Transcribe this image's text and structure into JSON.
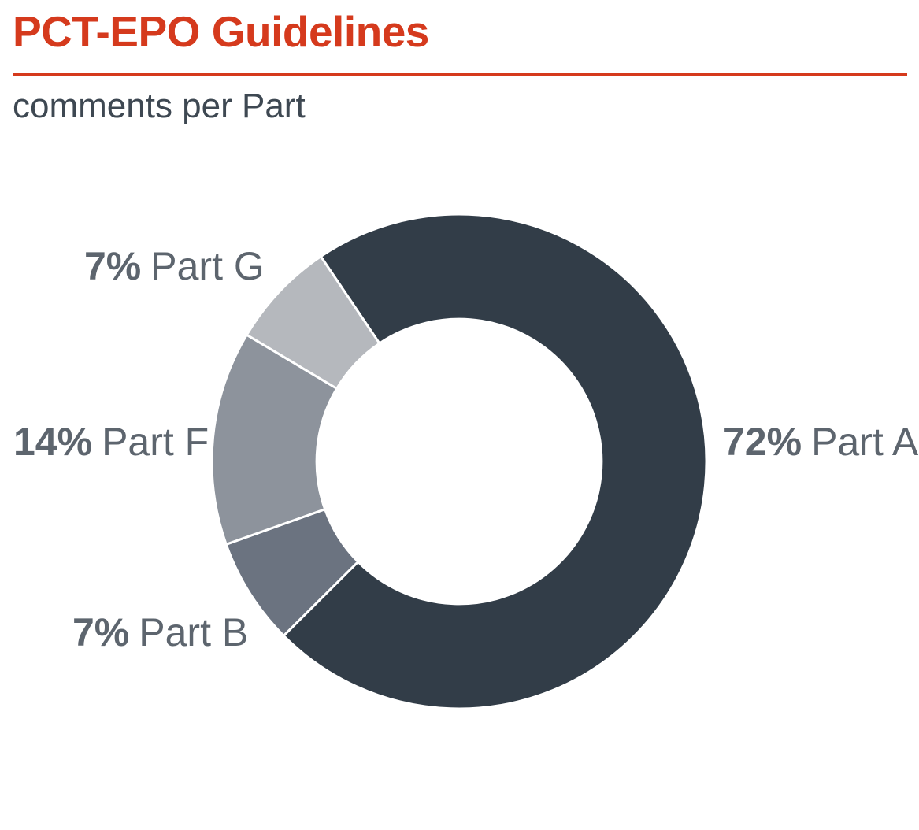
{
  "header": {
    "title": "PCT-EPO Guidelines",
    "subtitle": "comments per Part",
    "accent_color": "#d53a1d"
  },
  "chart_data": {
    "type": "pie",
    "variant": "donut",
    "title": "PCT-EPO Guidelines",
    "subtitle": "comments per Part",
    "unit": "%",
    "categories": [
      "Part A",
      "Part B",
      "Part F",
      "Part G"
    ],
    "values": [
      72,
      7,
      14,
      7
    ],
    "segments": [
      {
        "label": "Part A",
        "value": 72,
        "pct_label": "72%",
        "color": "#323d48",
        "label_side": "right"
      },
      {
        "label": "Part B",
        "value": 7,
        "pct_label": "7%",
        "color": "#6b7380",
        "label_side": "left"
      },
      {
        "label": "Part F",
        "value": 14,
        "pct_label": "14%",
        "color": "#8d939c",
        "label_side": "left"
      },
      {
        "label": "Part G",
        "value": 7,
        "pct_label": "7%",
        "color": "#b5b8bd",
        "label_side": "left"
      }
    ],
    "layout": {
      "start_angle_deg": -34,
      "clockwise": true,
      "inner_radius_ratio": 0.576,
      "separator_color": "#ffffff",
      "legend": "none",
      "labels": "outside",
      "label_text_color": "#5d656e"
    }
  }
}
